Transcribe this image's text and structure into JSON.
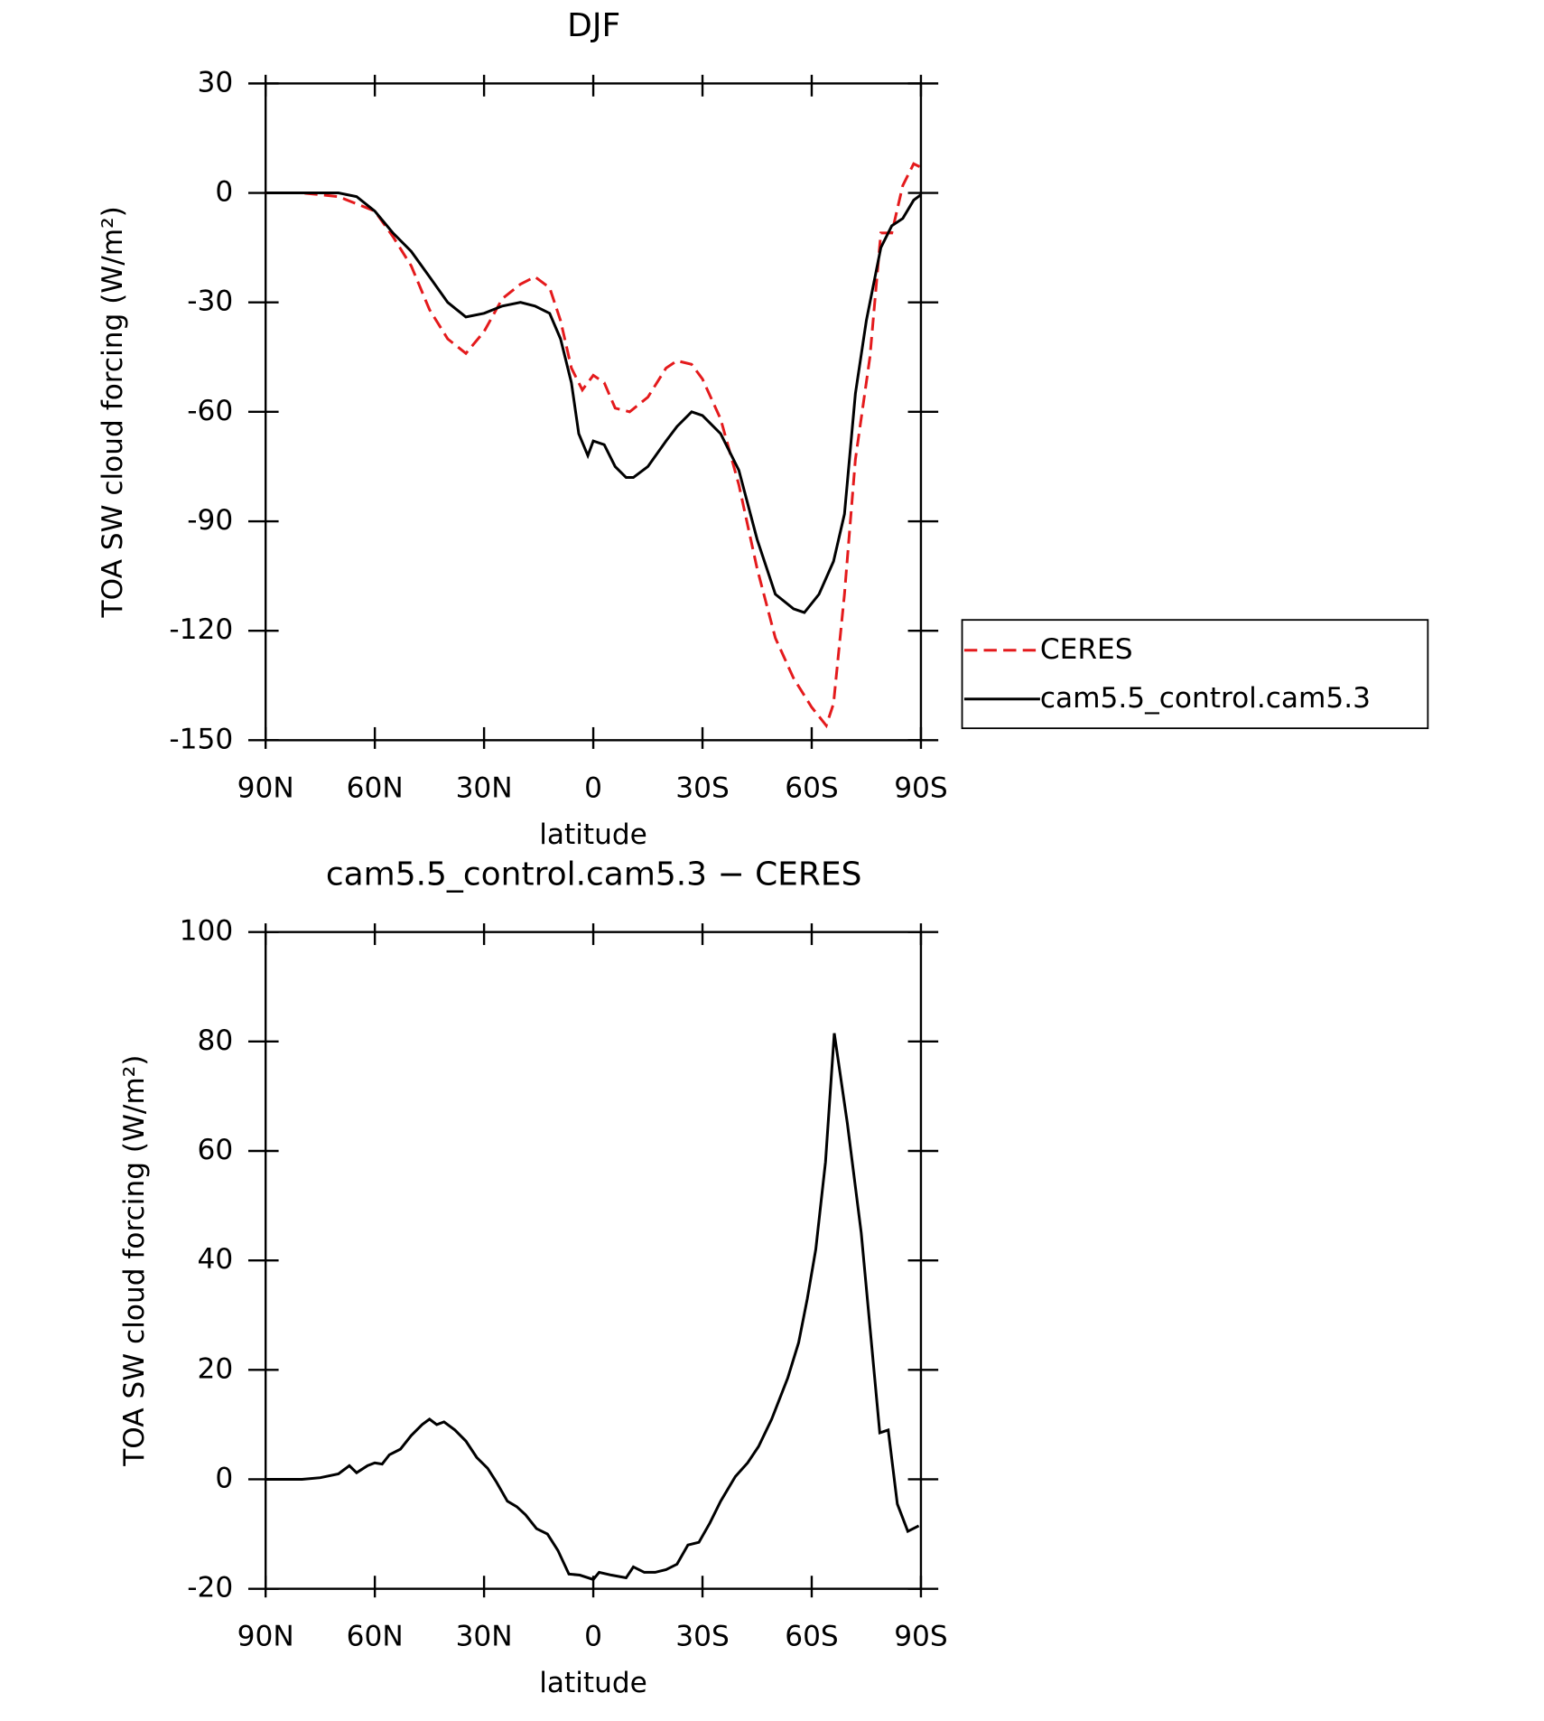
{
  "chart_data": [
    {
      "type": "line",
      "title": "DJF",
      "x_label": "latitude",
      "y_label": "TOA SW cloud forcing (W/m²)",
      "xlim": [
        90,
        -90
      ],
      "xticks": [
        {
          "value": 90,
          "label": "90N"
        },
        {
          "value": 60,
          "label": "60N"
        },
        {
          "value": 30,
          "label": "30N"
        },
        0,
        {
          "value": -30,
          "label": "30S"
        },
        {
          "value": -60,
          "label": "60S"
        },
        {
          "value": -90,
          "label": "90S"
        }
      ],
      "ylim": [
        -150,
        30
      ],
      "yticks": [
        -150,
        -120,
        -90,
        -60,
        -30,
        0,
        30
      ],
      "legend": "right",
      "series": [
        {
          "name": "CERES",
          "color": "#e41a1c",
          "dashed": true,
          "x": [
            90,
            80,
            70,
            65,
            60,
            55,
            50,
            45,
            40,
            35,
            30,
            25,
            20,
            16,
            12,
            9,
            6,
            3,
            0,
            -3,
            -6,
            -10,
            -15,
            -20,
            -23,
            -27,
            -30,
            -35,
            -40,
            -45,
            -50,
            -55,
            -60,
            -64,
            -66,
            -69,
            -72,
            -76,
            -79,
            -82,
            -85,
            -88,
            -90
          ],
          "values": [
            0,
            0,
            -1,
            -3,
            -5,
            -12,
            -20,
            -32,
            -40,
            -44,
            -38,
            -29,
            -25,
            -23,
            -26,
            -35,
            -48,
            -54,
            -50,
            -52,
            -59,
            -60,
            -56,
            -48,
            -46,
            -47,
            -51,
            -62,
            -80,
            -103,
            -122,
            -133,
            -141,
            -146,
            -140,
            -110,
            -73,
            -45,
            -11,
            -11,
            2,
            8,
            7
          ]
        },
        {
          "name": "cam5.5_control.cam5.3",
          "color": "#000000",
          "dashed": false,
          "x": [
            90,
            70,
            65,
            60,
            55,
            50,
            45,
            40,
            35,
            30,
            25,
            20,
            16,
            12,
            9,
            6,
            4,
            1.5,
            0,
            -3,
            -6,
            -9,
            -11,
            -15,
            -20,
            -23,
            -27,
            -30,
            -35,
            -40,
            -45,
            -50,
            -55,
            -58,
            -62,
            -66,
            -69,
            -72,
            -75,
            -79,
            -82,
            -85,
            -88,
            -90
          ],
          "values": [
            0,
            0,
            -1,
            -5,
            -11,
            -16,
            -23,
            -30,
            -34,
            -33,
            -31,
            -30,
            -31,
            -33,
            -40,
            -52,
            -66,
            -72,
            -68,
            -69,
            -75,
            -78,
            -78,
            -75,
            -68,
            -64,
            -60,
            -61,
            -66,
            -76,
            -95,
            -110,
            -114,
            -115,
            -110,
            -101,
            -88,
            -55,
            -35,
            -15,
            -9,
            -7,
            -2,
            -0.5
          ]
        }
      ]
    },
    {
      "type": "line",
      "title": "cam5.5_control.cam5.3 − CERES",
      "x_label": "latitude",
      "y_label": "TOA SW cloud forcing (W/m²)",
      "xlim": [
        90,
        -90
      ],
      "xticks": [
        {
          "value": 90,
          "label": "90N"
        },
        {
          "value": 60,
          "label": "60N"
        },
        {
          "value": 30,
          "label": "30N"
        },
        0,
        {
          "value": -30,
          "label": "30S"
        },
        {
          "value": -60,
          "label": "60S"
        },
        {
          "value": -90,
          "label": "90S"
        }
      ],
      "ylim": [
        -20,
        100
      ],
      "yticks": [
        -20,
        0,
        20,
        40,
        60,
        80,
        100
      ],
      "series": [
        {
          "color": "#000000",
          "dashed": false,
          "x": [
            90,
            80,
            75,
            70,
            67,
            65,
            62,
            60,
            58,
            56,
            53,
            50,
            47,
            45,
            43,
            41,
            38,
            35,
            32,
            29,
            26.6,
            23.6,
            21,
            18.6,
            15.6,
            12.6,
            9.7,
            6.7,
            3.7,
            0,
            -1.6,
            -5,
            -9,
            -11,
            -14,
            -17,
            -20,
            -23,
            -26,
            -29,
            -32,
            -35,
            -39,
            -42.4,
            -45.4,
            -49,
            -53.4,
            -56.4,
            -58.8,
            -61.1,
            -63.8,
            -66.2,
            -69.8,
            -73.6,
            -78.7,
            -81,
            -83.5,
            -86.4,
            -89.4
          ],
          "values": [
            0,
            0,
            0.3,
            1,
            2.5,
            1.2,
            2.5,
            3,
            2.8,
            4.5,
            5.5,
            8,
            10,
            11,
            10,
            10.5,
            9,
            7,
            4,
            2,
            -0.5,
            -4,
            -5,
            -6.5,
            -9,
            -10,
            -13,
            -17.3,
            -17.5,
            -18.3,
            -17,
            -17.5,
            -18,
            -16,
            -17,
            -17,
            -16.5,
            -15.5,
            -12,
            -11.5,
            -8,
            -4,
            0.5,
            3,
            6,
            11,
            18.5,
            25,
            33,
            42,
            58,
            81.5,
            65,
            45,
            8.5,
            9,
            -4.5,
            -9.5,
            -8.5
          ]
        }
      ]
    }
  ]
}
